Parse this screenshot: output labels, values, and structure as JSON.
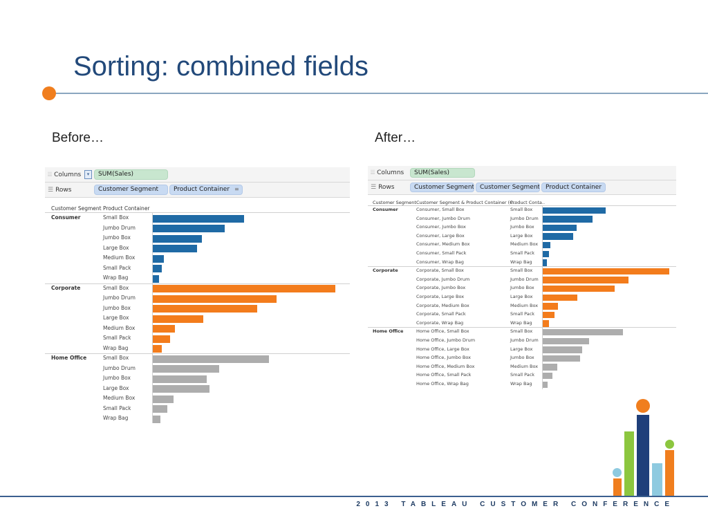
{
  "slide": {
    "title": "Sorting: combined fields",
    "caption_before": "Before…",
    "caption_after": "After…",
    "footer": "2013 TABLEAU CUSTOMER CONFERENCE"
  },
  "colors": {
    "Consumer": "#1f6aa5",
    "Corporate": "#f37c1c",
    "Home Office": "#adadad",
    "title": "#22497a",
    "accent_orange": "#f07e1e"
  },
  "before": {
    "columns_label": "Columns",
    "rows_label": "Rows",
    "columns_pill": "SUM(Sales)",
    "rows_pills": [
      "Customer Segment",
      "Product Container"
    ],
    "header_segment": "Customer Segment",
    "header_container": "Product Container"
  },
  "after": {
    "columns_label": "Columns",
    "rows_label": "Rows",
    "columns_pill": "SUM(Sales)",
    "rows_pills": [
      "Customer Segment",
      "Customer Segment &..",
      "Product Container"
    ],
    "header_segment": "Customer Segment",
    "header_combined": "Customer Segment & Product Container (C..",
    "header_container": "Product Conta.."
  },
  "chart_data": [
    {
      "type": "bar",
      "orientation": "horizontal",
      "name": "before",
      "measure": "SUM(Sales)",
      "segments": [
        {
          "segment": "Consumer",
          "categories": [
            "Small Box",
            "Jumbo Drum",
            "Jumbo Box",
            "Large Box",
            "Medium Box",
            "Small Pack",
            "Wrap Bag"
          ],
          "values": [
            137,
            108,
            74,
            66,
            17,
            13,
            9
          ]
        },
        {
          "segment": "Corporate",
          "categories": [
            "Small Box",
            "Jumbo Drum",
            "Jumbo Box",
            "Large Box",
            "Medium Box",
            "Small Pack",
            "Wrap Bag"
          ],
          "values": [
            274,
            185,
            156,
            76,
            33,
            26,
            13
          ]
        },
        {
          "segment": "Home Office",
          "categories": [
            "Small Box",
            "Jumbo Drum",
            "Jumbo Box",
            "Large Box",
            "Medium Box",
            "Small Pack",
            "Wrap Bag"
          ],
          "values": [
            174,
            100,
            81,
            85,
            31,
            22,
            11
          ]
        }
      ],
      "xlim": [
        0,
        285
      ]
    },
    {
      "type": "bar",
      "orientation": "horizontal",
      "name": "after",
      "measure": "SUM(Sales)",
      "segments": [
        {
          "segment": "Consumer",
          "combined": [
            "Consumer, Small Box",
            "Consumer, Jumbo Drum",
            "Consumer, Jumbo Box",
            "Consumer, Large Box",
            "Consumer, Medium Box",
            "Consumer, Small Pack",
            "Consumer, Wrap Bag"
          ],
          "categories": [
            "Small Box",
            "Jumbo Drum",
            "Jumbo Box",
            "Large Box",
            "Medium Box",
            "Small Pack",
            "Wrap Bag"
          ],
          "values": [
            91,
            72,
            49,
            44,
            11,
            9,
            6
          ]
        },
        {
          "segment": "Corporate",
          "combined": [
            "Corporate, Small Box",
            "Corporate, Jumbo Drum",
            "Corporate, Jumbo Box",
            "Corporate, Large Box",
            "Corporate, Medium Box",
            "Corporate, Small Pack",
            "Corporate, Wrap Bag"
          ],
          "categories": [
            "Small Box",
            "Jumbo Drum",
            "Jumbo Box",
            "Large Box",
            "Medium Box",
            "Small Pack",
            "Wrap Bag"
          ],
          "values": [
            183,
            124,
            104,
            50,
            22,
            17,
            9
          ]
        },
        {
          "segment": "Home Office",
          "combined": [
            "Home Office, Small Box",
            "Home Office, Jumbo Drum",
            "Home Office, Large Box",
            "Home Office, Jumbo Box",
            "Home Office, Medium Box",
            "Home Office, Small Pack",
            "Home Office, Wrap Bag"
          ],
          "categories": [
            "Small Box",
            "Jumbo Drum",
            "Large Box",
            "Jumbo Box",
            "Medium Box",
            "Small Pack",
            "Wrap Bag"
          ],
          "values": [
            116,
            67,
            57,
            54,
            21,
            14,
            7
          ]
        }
      ],
      "xlim": [
        0,
        190
      ]
    }
  ]
}
